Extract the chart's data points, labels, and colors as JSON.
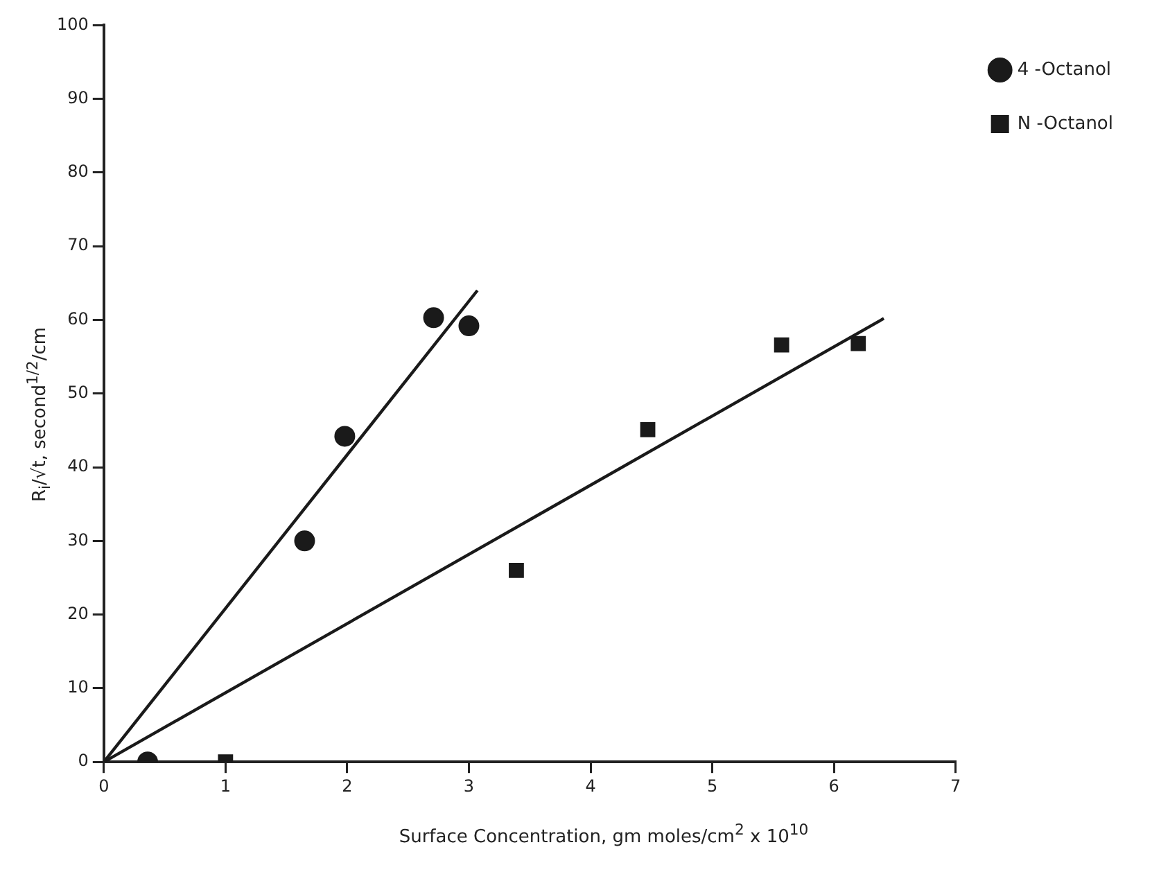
{
  "chart_data": {
    "type": "scatter",
    "xlabel": "Surface Concentration, gm moles/cm$^{2}$ x 10$^{10}$",
    "ylabel": "R$_{i}$/√t, second$^{1/2}$/cm",
    "xlim": [
      0,
      7
    ],
    "xticks": [
      0,
      1,
      2,
      3,
      4,
      5,
      6,
      7
    ],
    "ylim": [
      0,
      100
    ],
    "yticks": [
      0,
      10,
      20,
      30,
      40,
      50,
      60,
      70,
      80,
      90,
      100
    ],
    "grid": false,
    "legend": "top right",
    "series": [
      {
        "name": "4 -Octanol",
        "color": "#1a1a1a",
        "marker": "circle",
        "x": [
          0.36,
          1.65,
          1.98,
          2.71,
          3.0
        ],
        "values": [
          0,
          30,
          44.2,
          60.3,
          59.2
        ]
      },
      {
        "name": "N -Octanol",
        "color": "#1a1a1a",
        "marker": "square",
        "x": [
          1.0,
          3.39,
          4.47,
          5.57,
          6.2
        ],
        "values": [
          0,
          26,
          45.1,
          56.6,
          56.8
        ]
      },
      {
        "type": "line",
        "color": "#1a1a1a",
        "marker": "none",
        "x": [
          0,
          3.07
        ],
        "values": [
          0,
          64
        ]
      },
      {
        "type": "line",
        "color": "#1a1a1a",
        "marker": "none",
        "x": [
          0,
          6.41
        ],
        "values": [
          0,
          60.2
        ]
      }
    ]
  }
}
